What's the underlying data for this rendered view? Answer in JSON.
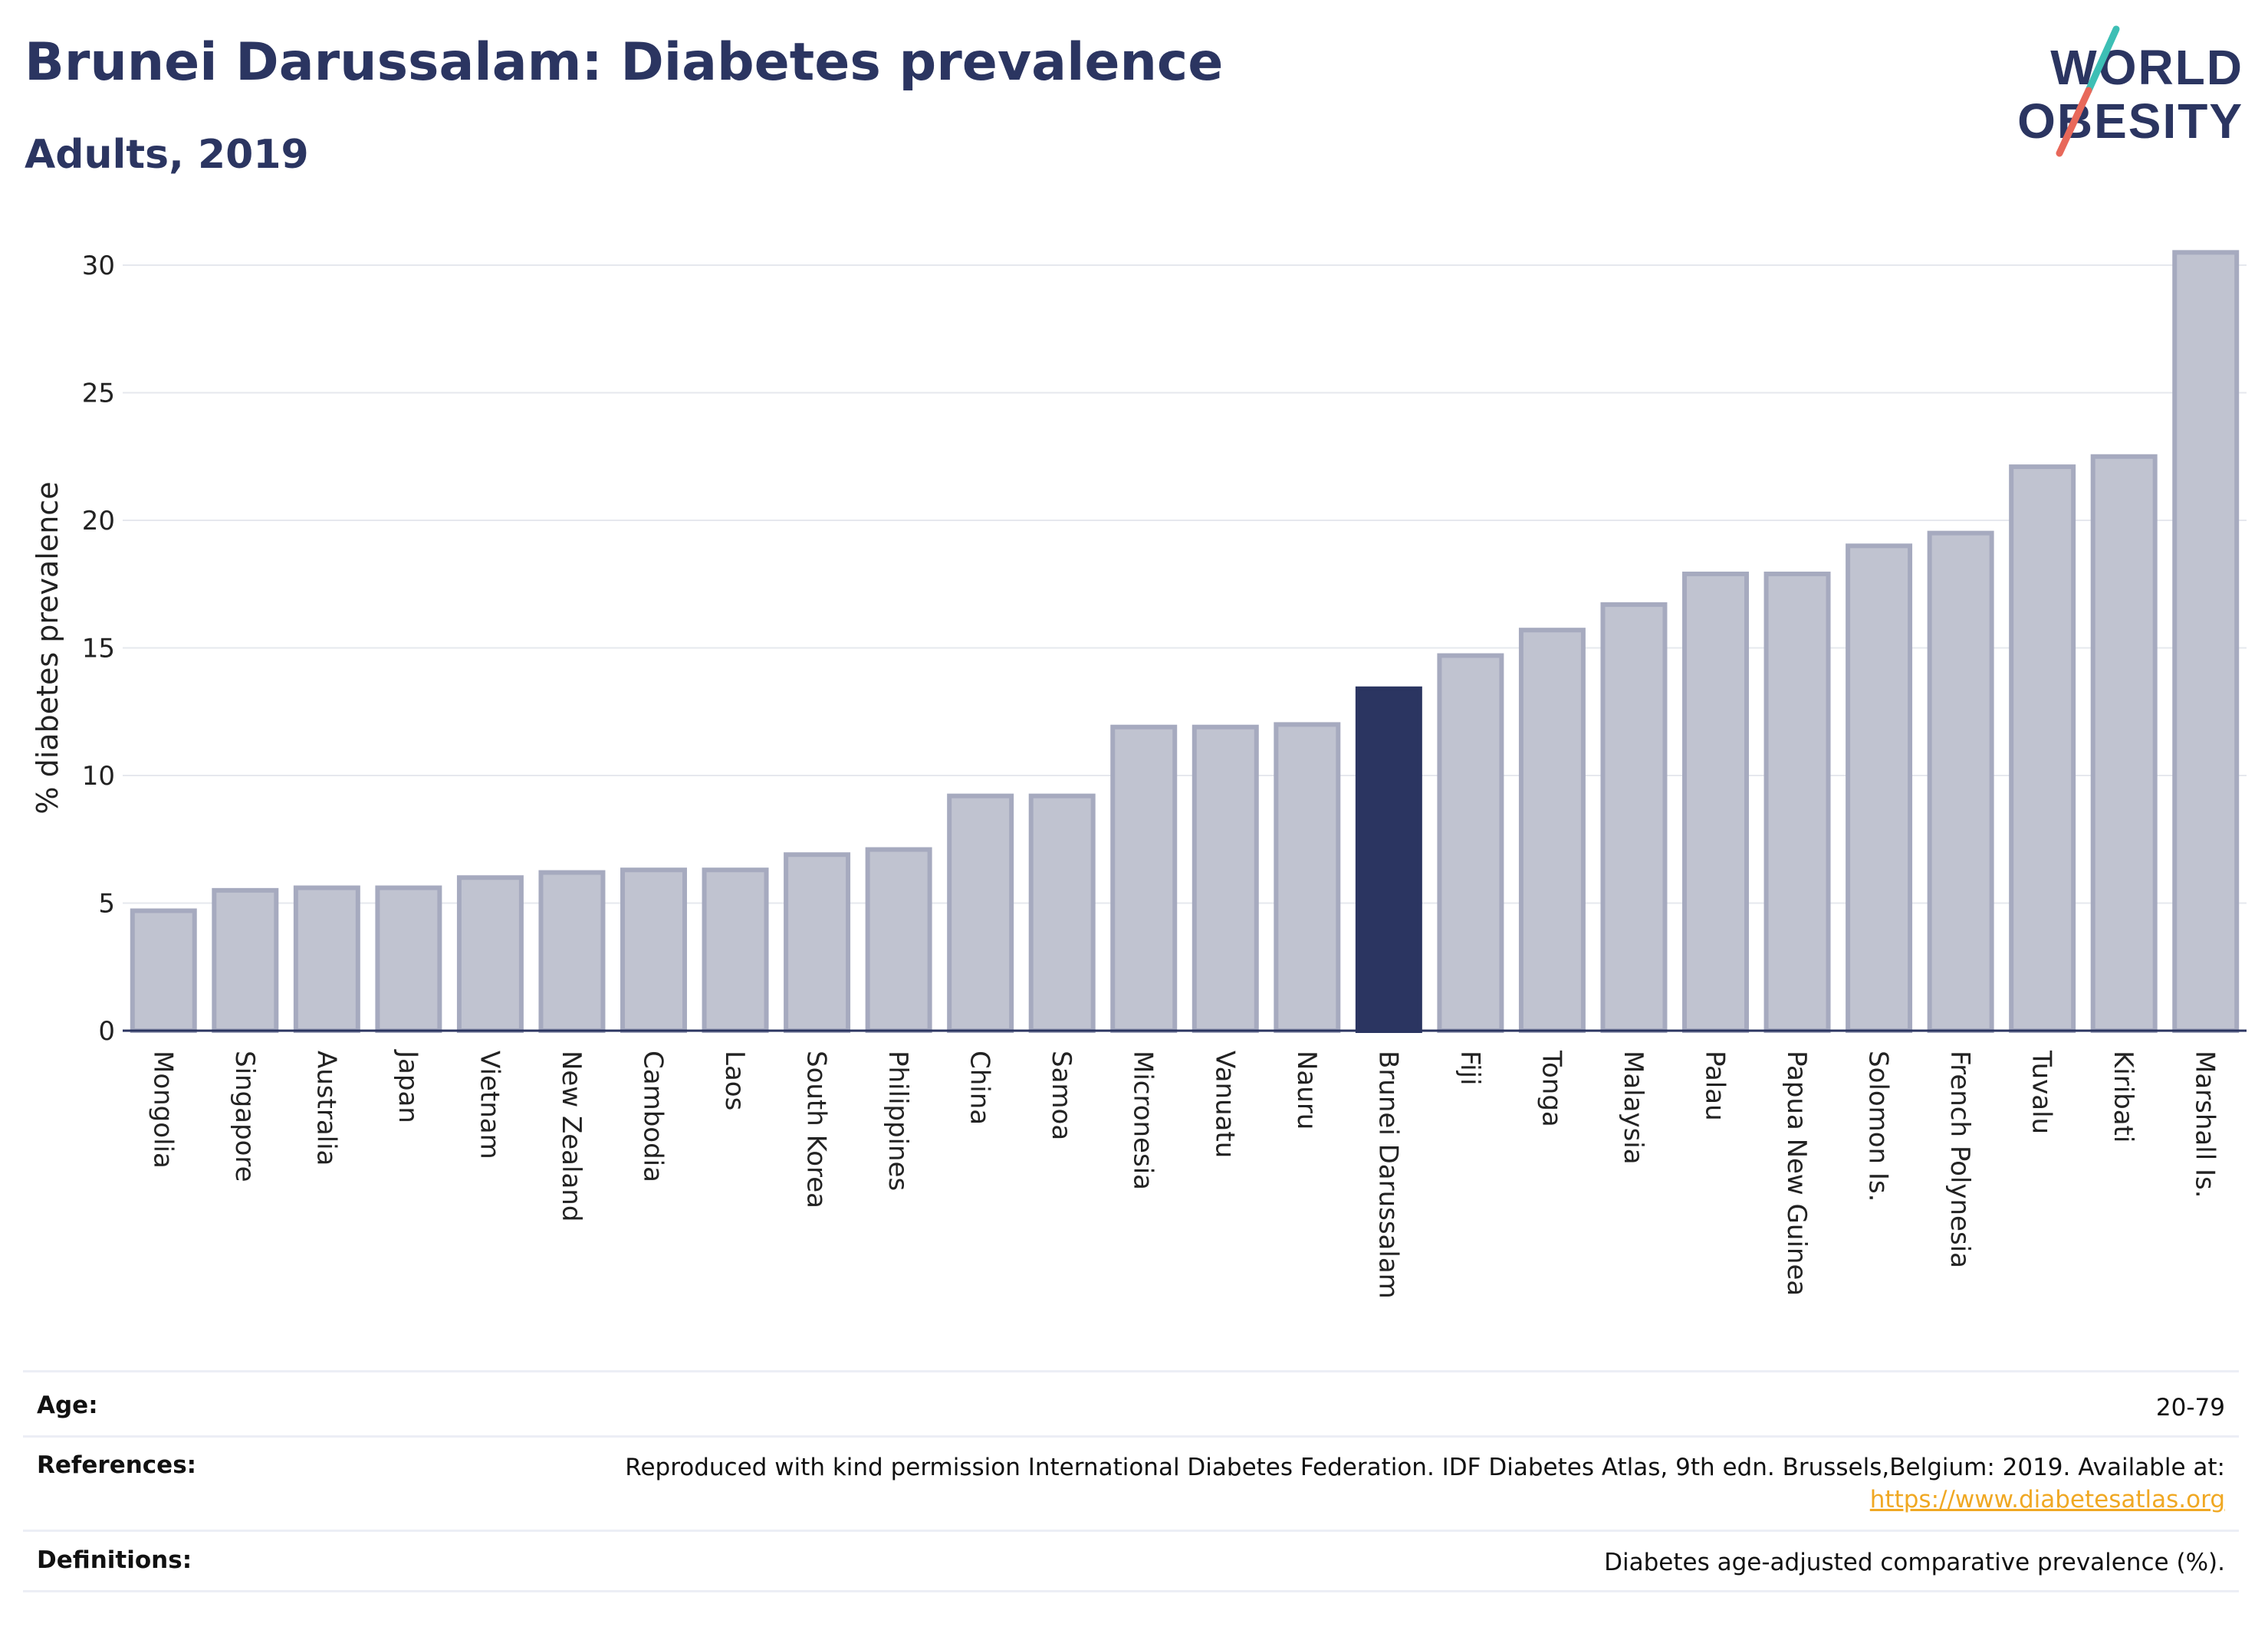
{
  "header": {
    "title": "Brunei Darussalam: Diabetes prevalence",
    "subtitle": "Adults, 2019"
  },
  "logo": {
    "line1": "WORLD",
    "line2": "OBESITY",
    "slash_colors": [
      "#3dbfb5",
      "#e8685a"
    ]
  },
  "colors": {
    "highlight": "#2b3561",
    "bar_fill": "#c0c3d0",
    "bar_stroke": "#a6aabf",
    "grid": "#e6e8ee",
    "axis": "#2b3561"
  },
  "chart_data": {
    "type": "bar",
    "ylabel": "% diabetes prevalence",
    "xlabel": "",
    "ylim": [
      0,
      30.5
    ],
    "yticks": [
      0,
      5,
      10,
      15,
      20,
      25,
      30
    ],
    "grid": true,
    "highlight": "Brunei Darussalam",
    "categories": [
      "Mongolia",
      "Singapore",
      "Australia",
      "Japan",
      "Vietnam",
      "New Zealand",
      "Cambodia",
      "Laos",
      "South Korea",
      "Philippines",
      "China",
      "Samoa",
      "Micronesia",
      "Vanuatu",
      "Nauru",
      "Brunei Darussalam",
      "Fiji",
      "Tonga",
      "Malaysia",
      "Palau",
      "Papua New Guinea",
      "Solomon Is.",
      "French Polynesia",
      "Tuvalu",
      "Kiribati",
      "Marshall Is."
    ],
    "values": [
      4.7,
      5.5,
      5.6,
      5.6,
      6.0,
      6.2,
      6.3,
      6.3,
      6.9,
      7.1,
      9.2,
      9.2,
      11.9,
      11.9,
      12.0,
      13.4,
      14.7,
      15.7,
      16.7,
      17.9,
      17.9,
      19.0,
      19.5,
      22.1,
      22.5,
      30.5
    ]
  },
  "info": {
    "age_label": "Age:",
    "age_value": "20-79",
    "references_label": "References:",
    "references_text": "Reproduced with kind permission International Diabetes Federation. IDF Diabetes Atlas, 9th edn. Brussels,Belgium: 2019. Available at:",
    "references_link": "https://www.diabetesatlas.org",
    "definitions_label": "Definitions:",
    "definitions_value": "Diabetes age-adjusted comparative prevalence (%)."
  }
}
